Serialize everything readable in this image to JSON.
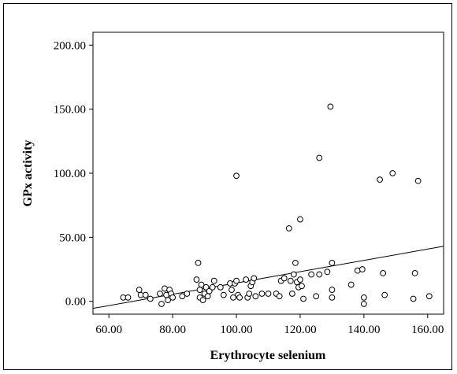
{
  "chart_data": {
    "type": "scatter",
    "title": "",
    "xlabel": "Erythrocyte selenium",
    "ylabel": "GPx activity",
    "xlim": [
      55,
      165
    ],
    "ylim": [
      -10,
      210
    ],
    "x_ticks": [
      60,
      80,
      100,
      120,
      140,
      160
    ],
    "y_ticks": [
      0,
      50,
      100,
      150,
      200
    ],
    "x_tick_labels": [
      "60.00",
      "80.00",
      "100.00",
      "120.00",
      "140.00",
      "160.00"
    ],
    "y_tick_labels": [
      "0.00",
      "50.00",
      "100.00",
      "150.00",
      "200.00"
    ],
    "grid": false,
    "legend": "none",
    "fit_line": {
      "x": [
        55,
        165
      ],
      "y": [
        -5.5,
        43
      ]
    },
    "points": [
      {
        "x": 64.5,
        "y": 3
      },
      {
        "x": 66,
        "y": 3
      },
      {
        "x": 69.5,
        "y": 9
      },
      {
        "x": 70,
        "y": 5
      },
      {
        "x": 71.5,
        "y": 5
      },
      {
        "x": 73,
        "y": 2
      },
      {
        "x": 76,
        "y": 6
      },
      {
        "x": 76.5,
        "y": -2
      },
      {
        "x": 77.5,
        "y": 10
      },
      {
        "x": 78,
        "y": 5
      },
      {
        "x": 78.5,
        "y": 1
      },
      {
        "x": 79,
        "y": 9
      },
      {
        "x": 79.5,
        "y": 6
      },
      {
        "x": 80,
        "y": 3
      },
      {
        "x": 83,
        "y": 4
      },
      {
        "x": 84.5,
        "y": 6
      },
      {
        "x": 87.5,
        "y": 17
      },
      {
        "x": 88,
        "y": 30
      },
      {
        "x": 88.5,
        "y": 9
      },
      {
        "x": 88.5,
        "y": 3
      },
      {
        "x": 89,
        "y": 13
      },
      {
        "x": 89.5,
        "y": 1
      },
      {
        "x": 90,
        "y": 6
      },
      {
        "x": 90.5,
        "y": 11
      },
      {
        "x": 91,
        "y": 4
      },
      {
        "x": 91.5,
        "y": 8
      },
      {
        "x": 92.5,
        "y": 11
      },
      {
        "x": 93,
        "y": 16
      },
      {
        "x": 95,
        "y": 11
      },
      {
        "x": 96,
        "y": 5
      },
      {
        "x": 98,
        "y": 14
      },
      {
        "x": 98.5,
        "y": 9
      },
      {
        "x": 99,
        "y": 3
      },
      {
        "x": 99.5,
        "y": 14
      },
      {
        "x": 100,
        "y": 16
      },
      {
        "x": 100,
        "y": 98
      },
      {
        "x": 100.5,
        "y": 5
      },
      {
        "x": 101,
        "y": 3
      },
      {
        "x": 103,
        "y": 17
      },
      {
        "x": 103.5,
        "y": 3
      },
      {
        "x": 104,
        "y": 6
      },
      {
        "x": 104.5,
        "y": 12
      },
      {
        "x": 105,
        "y": 15
      },
      {
        "x": 105.5,
        "y": 18
      },
      {
        "x": 106,
        "y": 4
      },
      {
        "x": 108,
        "y": 6
      },
      {
        "x": 110,
        "y": 6
      },
      {
        "x": 112.5,
        "y": 6
      },
      {
        "x": 113.5,
        "y": 4
      },
      {
        "x": 114,
        "y": 16
      },
      {
        "x": 115,
        "y": 18
      },
      {
        "x": 116.5,
        "y": 57
      },
      {
        "x": 117,
        "y": 16
      },
      {
        "x": 117.5,
        "y": 6
      },
      {
        "x": 118,
        "y": 21
      },
      {
        "x": 118.5,
        "y": 30
      },
      {
        "x": 119,
        "y": 15
      },
      {
        "x": 119.5,
        "y": 11
      },
      {
        "x": 120,
        "y": 64
      },
      {
        "x": 120,
        "y": 17
      },
      {
        "x": 120.5,
        "y": 12
      },
      {
        "x": 121,
        "y": 2
      },
      {
        "x": 123.5,
        "y": 21
      },
      {
        "x": 125,
        "y": 4
      },
      {
        "x": 126,
        "y": 112
      },
      {
        "x": 126,
        "y": 21
      },
      {
        "x": 128.5,
        "y": 23
      },
      {
        "x": 129.5,
        "y": 152
      },
      {
        "x": 130,
        "y": 30
      },
      {
        "x": 130,
        "y": 9
      },
      {
        "x": 130,
        "y": 3
      },
      {
        "x": 136,
        "y": 13
      },
      {
        "x": 138,
        "y": 24
      },
      {
        "x": 139.5,
        "y": 25
      },
      {
        "x": 140,
        "y": 3
      },
      {
        "x": 140,
        "y": -2
      },
      {
        "x": 145,
        "y": 95
      },
      {
        "x": 146,
        "y": 22
      },
      {
        "x": 146.5,
        "y": 5
      },
      {
        "x": 149,
        "y": 100
      },
      {
        "x": 155.5,
        "y": 2
      },
      {
        "x": 156,
        "y": 22
      },
      {
        "x": 157,
        "y": 94
      },
      {
        "x": 160.5,
        "y": 4
      }
    ]
  }
}
